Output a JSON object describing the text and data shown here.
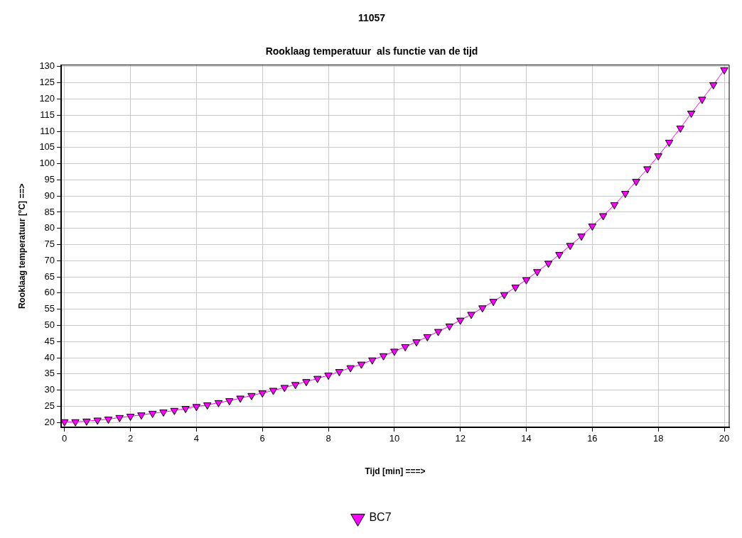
{
  "chart_data": {
    "type": "line",
    "title": "11057",
    "subtitle": "Rooklaag temperatuur  als functie van de tijd",
    "xlabel": "Tijd [min] ===>",
    "ylabel": "Rooklaag temperatuur [°C] ==>",
    "x": [
      0,
      0.33,
      0.67,
      1,
      1.33,
      1.67,
      2,
      2.33,
      2.67,
      3,
      3.33,
      3.67,
      4,
      4.33,
      4.67,
      5,
      5.33,
      5.67,
      6,
      6.33,
      6.67,
      7,
      7.33,
      7.67,
      8,
      8.33,
      8.67,
      9,
      9.33,
      9.67,
      10,
      10.33,
      10.67,
      11,
      11.33,
      11.67,
      12,
      12.33,
      12.67,
      13,
      13.33,
      13.67,
      14,
      14.33,
      14.67,
      15,
      15.33,
      15.67,
      16,
      16.33,
      16.67,
      17,
      17.33,
      17.67,
      18,
      18.33,
      18.67,
      19,
      19.33,
      19.67,
      20
    ],
    "series": [
      {
        "name": "BC7",
        "color": "#ff00ff",
        "values": [
          20.2,
          20.2,
          20.4,
          20.7,
          21,
          21.5,
          21.9,
          22.3,
          22.8,
          23.2,
          23.7,
          24.3,
          24.9,
          25.4,
          26.1,
          26.7,
          27.5,
          28.3,
          29.1,
          29.9,
          30.8,
          31.7,
          32.6,
          33.6,
          34.6,
          35.7,
          36.9,
          38,
          39.3,
          40.6,
          42,
          43.4,
          44.9,
          46.5,
          48.1,
          49.8,
          51.6,
          53.4,
          55.4,
          57.4,
          59.5,
          61.8,
          64.1,
          66.6,
          69.2,
          71.9,
          74.7,
          77.6,
          80.7,
          83.9,
          87.3,
          90.8,
          94.5,
          98.4,
          102.4,
          106.6,
          111,
          115.6,
          119.9,
          124.4,
          129
        ]
      }
    ],
    "xlim": [
      -0.1,
      20.15
    ],
    "xticks": [
      0,
      2,
      4,
      6,
      8,
      10,
      12,
      14,
      16,
      18,
      20
    ],
    "ylim": [
      18.5,
      130.5
    ],
    "yticks": [
      20,
      25,
      30,
      35,
      40,
      45,
      50,
      55,
      60,
      65,
      70,
      75,
      80,
      85,
      90,
      95,
      100,
      105,
      110,
      115,
      120,
      125,
      130
    ],
    "grid": true,
    "legend": "bottom",
    "marker": "triangle",
    "line_style": "solid"
  }
}
